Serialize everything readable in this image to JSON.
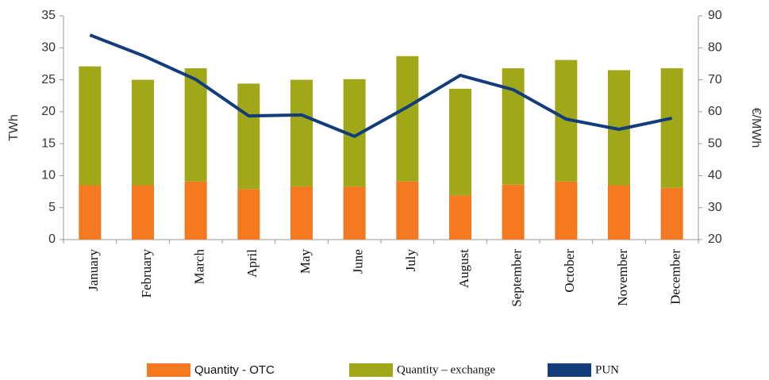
{
  "chart_data": {
    "type": "bar-line",
    "ylabel": "TWh",
    "y2label": "€/MWh",
    "categories": [
      "January",
      "February",
      "March",
      "April",
      "May",
      "June",
      "July",
      "August",
      "September",
      "October",
      "November",
      "December"
    ],
    "series": [
      {
        "name": "Quantity - OTC",
        "type": "bar",
        "color": "#f47920",
        "values": [
          8.5,
          8.5,
          9.1,
          7.9,
          8.3,
          8.3,
          9.1,
          6.9,
          8.6,
          9.1,
          8.5,
          8.1
        ]
      },
      {
        "name": "Quantity – exchange",
        "type": "bar",
        "color": "#a0a81a",
        "values": [
          18.6,
          16.5,
          17.7,
          16.5,
          16.7,
          16.8,
          19.6,
          16.7,
          18.2,
          19.0,
          18.0,
          18.7
        ]
      },
      {
        "name": "PUN",
        "type": "line",
        "axis": "y2",
        "color": "#123d7a",
        "values": [
          84.0,
          77.6,
          70.1,
          58.7,
          59.0,
          52.3,
          61.5,
          71.4,
          66.9,
          57.7,
          54.5,
          58.0
        ]
      }
    ],
    "ylim": [
      0,
      35
    ],
    "yticks": [
      0,
      5,
      10,
      15,
      20,
      25,
      30,
      35
    ],
    "y2lim": [
      20,
      90
    ],
    "y2ticks": [
      20,
      30,
      40,
      50,
      60,
      70,
      80,
      90
    ],
    "stacked": true
  }
}
